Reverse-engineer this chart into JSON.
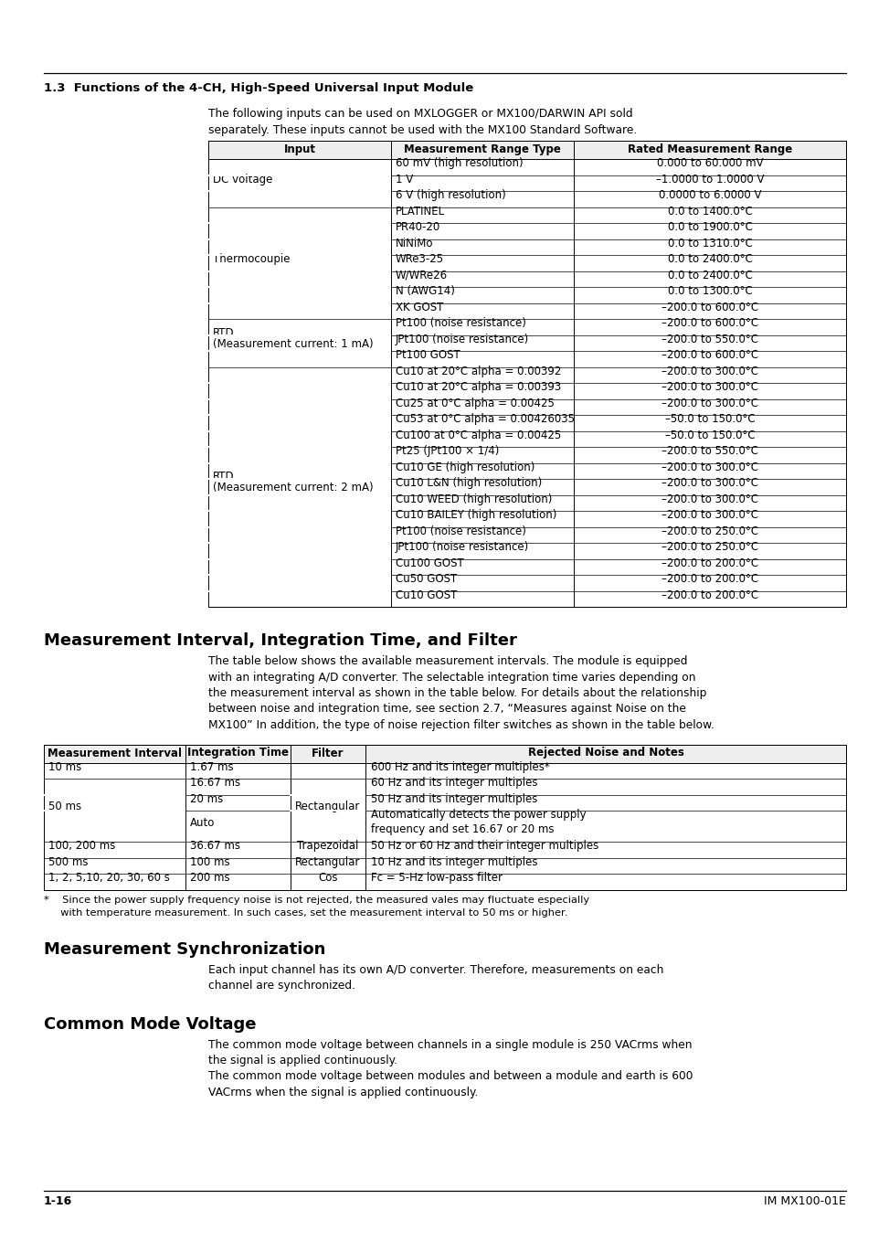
{
  "page_bg": "#ffffff",
  "section_heading": "1.3  Functions of the 4-CH, High-Speed Universal Input Module",
  "intro_line1": "The following inputs can be used on MXLOGGER or MX100/DARWIN API sold",
  "intro_line2": "separately. These inputs cannot be used with the MX100 Standard Software.",
  "table1_headers": [
    "Input",
    "Measurement Range Type",
    "Rated Measurement Range"
  ],
  "table1_rows": [
    [
      "",
      "60 mV (high resolution)",
      "0.000 to 60.000 mV"
    ],
    [
      "DC voltage",
      "1 V",
      "–1.0000 to 1.0000 V"
    ],
    [
      "",
      "6 V (high resolution)",
      "0.0000 to 6.0000 V"
    ],
    [
      "",
      "PLATINEL",
      "0.0 to 1400.0°C"
    ],
    [
      "",
      "PR40-20",
      "0.0 to 1900.0°C"
    ],
    [
      "",
      "NiNiMo",
      "0.0 to 1310.0°C"
    ],
    [
      "Thermocouple",
      "WRe3-25",
      "0.0 to 2400.0°C"
    ],
    [
      "",
      "W/WRe26",
      "0.0 to 2400.0°C"
    ],
    [
      "",
      "N (AWG14)",
      "0.0 to 1300.0°C"
    ],
    [
      "",
      "XK GOST",
      "–200.0 to 600.0°C"
    ],
    [
      "RTD\n(Measurement current: 1 mA)",
      "Pt100 (noise resistance)",
      "–200.0 to 600.0°C"
    ],
    [
      "",
      "JPt100 (noise resistance)",
      "–200.0 to 550.0°C"
    ],
    [
      "",
      "Pt100 GOST",
      "–200.0 to 600.0°C"
    ],
    [
      "",
      "Cu10 at 20°C alpha = 0.00392",
      "–200.0 to 300.0°C"
    ],
    [
      "",
      "Cu10 at 20°C alpha = 0.00393",
      "–200.0 to 300.0°C"
    ],
    [
      "",
      "Cu25 at 0°C alpha = 0.00425",
      "–200.0 to 300.0°C"
    ],
    [
      "",
      "Cu53 at 0°C alpha = 0.00426035",
      "–50.0 to 150.0°C"
    ],
    [
      "",
      "Cu100 at 0°C alpha = 0.00425",
      "–50.0 to 150.0°C"
    ],
    [
      "",
      "Pt25 (JPt100 × 1/4)",
      "–200.0 to 550.0°C"
    ],
    [
      "RTD\n(Measurement current: 2 mA)",
      "Cu10 GE (high resolution)",
      "–200.0 to 300.0°C"
    ],
    [
      "",
      "Cu10 L&N (high resolution)",
      "–200.0 to 300.0°C"
    ],
    [
      "",
      "Cu10 WEED (high resolution)",
      "–200.0 to 300.0°C"
    ],
    [
      "",
      "Cu10 BAILEY (high resolution)",
      "–200.0 to 300.0°C"
    ],
    [
      "",
      "Pt100 (noise resistance)",
      "–200.0 to 250.0°C"
    ],
    [
      "",
      "JPt100 (noise resistance)",
      "–200.0 to 250.0°C"
    ],
    [
      "",
      "Cu100 GOST",
      "–200.0 to 200.0°C"
    ],
    [
      "",
      "Cu50 GOST",
      "–200.0 to 200.0°C"
    ],
    [
      "",
      "Cu10 GOST",
      "–200.0 to 200.0°C"
    ]
  ],
  "table1_col0_groups": [
    [
      "DC voltage",
      0,
      2
    ],
    [
      "Thermocouple",
      3,
      9
    ],
    [
      "RTD\n(Measurement current: 1 mA)",
      10,
      12
    ],
    [
      "RTD\n(Measurement current: 2 mA)",
      13,
      27
    ]
  ],
  "section2_heading": "Measurement Interval, Integration Time, and Filter",
  "section2_text_lines": [
    "The table below shows the available measurement intervals. The module is equipped",
    "with an integrating A/D converter. The selectable integration time varies depending on",
    "the measurement interval as shown in the table below. For details about the relationship",
    "between noise and integration time, see section 2.7, “Measures against Noise on the",
    "MX100” In addition, the type of noise rejection filter switches as shown in the table below."
  ],
  "table2_headers": [
    "Measurement Interval",
    "Integration Time",
    "Filter",
    "Rejected Noise and Notes"
  ],
  "table2_rows": [
    [
      "10 ms",
      "1.67 ms",
      "",
      "600 Hz and its integer multiples*"
    ],
    [
      "",
      "16.67 ms",
      "",
      "60 Hz and its integer multiples"
    ],
    [
      "50 ms",
      "20 ms",
      "Rectangular",
      "50 Hz and its integer multiples"
    ],
    [
      "",
      "Auto",
      "",
      "Automatically detects the power supply\nfrequency and set 16.67 or 20 ms"
    ],
    [
      "100, 200 ms",
      "36.67 ms",
      "Trapezoidal",
      "50 Hz or 60 Hz and their integer multiples"
    ],
    [
      "500 ms",
      "100 ms",
      "Rectangular",
      "10 Hz and its integer multiples"
    ],
    [
      "1, 2, 5,10, 20, 30, 60 s",
      "200 ms",
      "Cos",
      "Fc = 5-Hz low-pass filter"
    ]
  ],
  "table2_col0_groups": [
    [
      "10 ms",
      0,
      0
    ],
    [
      "50 ms",
      1,
      3
    ],
    [
      "100, 200 ms",
      4,
      4
    ],
    [
      "500 ms",
      5,
      5
    ],
    [
      "1, 2, 5,10, 20, 30, 60 s",
      6,
      6
    ]
  ],
  "table2_col2_groups": [
    [
      "",
      0,
      0
    ],
    [
      "Rectangular",
      1,
      3
    ],
    [
      "Trapezoidal",
      4,
      4
    ],
    [
      "Rectangular",
      5,
      5
    ],
    [
      "Cos",
      6,
      6
    ]
  ],
  "table2_footnote_lines": [
    "*    Since the power supply frequency noise is not rejected, the measured vales may fluctuate especially",
    "     with temperature measurement. In such cases, set the measurement interval to 50 ms or higher."
  ],
  "section3_heading": "Measurement Synchronization",
  "section3_text_lines": [
    "Each input channel has its own A/D converter. Therefore, measurements on each",
    "channel are synchronized."
  ],
  "section4_heading": "Common Mode Voltage",
  "section4_text_lines": [
    "The common mode voltage between channels in a single module is 250 VACrms when",
    "the signal is applied continuously.",
    "The common mode voltage between modules and between a module and earth is 600",
    "VACrms when the signal is applied continuously."
  ],
  "footer_left": "1-16",
  "footer_right": "IM MX100-01E"
}
